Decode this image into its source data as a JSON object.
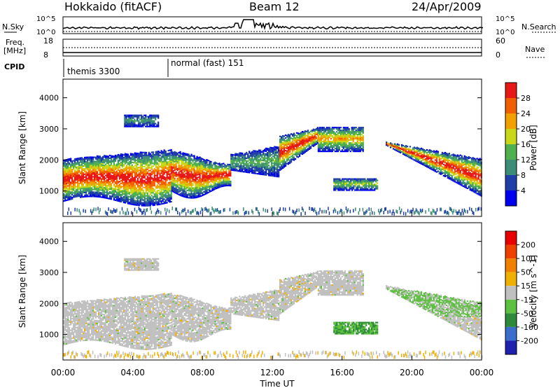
{
  "header": {
    "title_left": "Hokkaido (fitACF)",
    "title_center": "Beam 12",
    "title_right": "24/Apr/2009"
  },
  "noise_panel": {
    "left_label": "N.Sky",
    "right_label": "N.Search",
    "left_ticks": [
      "10^5",
      "10^0"
    ],
    "right_ticks": [
      "10^5",
      "10^0"
    ]
  },
  "freq_panel": {
    "left_label_1": "Freq.",
    "left_label_2": "[MHz]",
    "right_label": "Nave",
    "left_ticks": [
      "18",
      "8"
    ],
    "right_ticks": [
      "60",
      "0"
    ]
  },
  "cpid_panel": {
    "label": "CPID",
    "modes": [
      {
        "text": "themis 3300",
        "start_hour": 0
      },
      {
        "text": "normal (fast) 151",
        "start_hour": 6
      }
    ]
  },
  "chart_data": [
    {
      "type": "heatmap",
      "name": "power",
      "ylabel": "Slant Range [km]",
      "y_ticks": [
        1000,
        2000,
        3000,
        4000
      ],
      "ylim": [
        180,
        4600
      ],
      "xlim": [
        0,
        24
      ],
      "colorbar_label": "Power [dB]",
      "colorbar_ticks": [
        "28",
        "24",
        "20",
        "16",
        "12",
        "8",
        "4"
      ],
      "colorbar_colors": [
        "#0000ee",
        "#1f3ea8",
        "#3c8c78",
        "#4fb04f",
        "#c8d818",
        "#f0a000",
        "#f06000",
        "#e81818"
      ]
    },
    {
      "type": "heatmap",
      "name": "velocity",
      "ylabel": "Slant Range [km]",
      "y_ticks": [
        1000,
        2000,
        3000,
        4000
      ],
      "ylim": [
        180,
        4600
      ],
      "xlim": [
        0,
        24
      ],
      "colorbar_label": "Velocity [m s^-1]",
      "colorbar_ticks": [
        "200",
        "100",
        "50",
        "15",
        "-15",
        "-50",
        "-100",
        "-200"
      ],
      "colorbar_colors": [
        "#2020b0",
        "#3c6ccc",
        "#2e8a3a",
        "#5ec040",
        "#c0c0c0",
        "#f0b000",
        "#f08000",
        "#f04000",
        "#e80000"
      ]
    }
  ],
  "x_axis": {
    "label": "Time UT",
    "ticks": [
      "00:00",
      "04:00",
      "08:00",
      "12:00",
      "16:00",
      "20:00",
      "00:00"
    ]
  }
}
